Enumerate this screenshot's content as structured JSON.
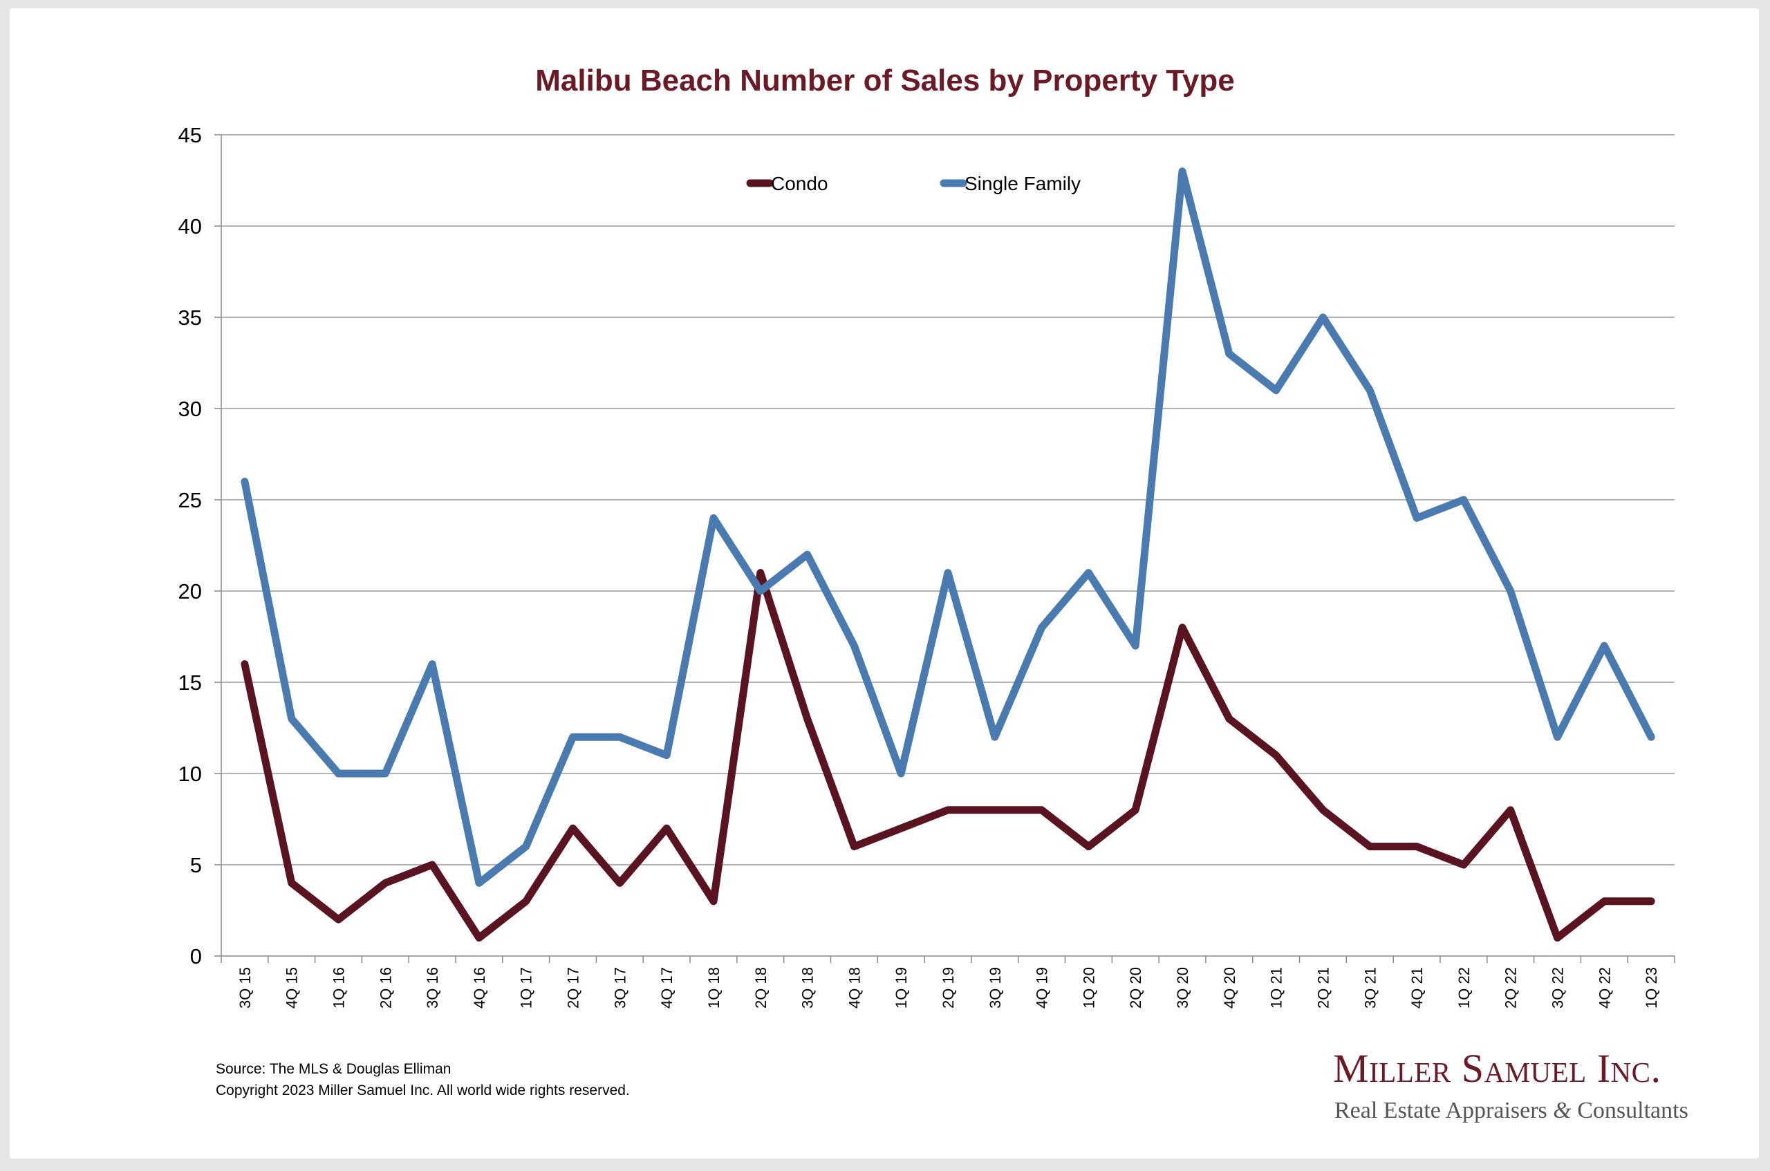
{
  "chart_data": {
    "type": "line",
    "title": "Malibu Beach Number of Sales by Property Type",
    "xlabel": "",
    "ylabel": "",
    "ylim": [
      0,
      45
    ],
    "yticks": [
      0,
      5,
      10,
      15,
      20,
      25,
      30,
      35,
      40,
      45
    ],
    "grid": true,
    "legend_position": "top-center",
    "categories": [
      "3Q 15",
      "4Q 15",
      "1Q 16",
      "2Q 16",
      "3Q 16",
      "4Q 16",
      "1Q 17",
      "2Q 17",
      "3Q 17",
      "4Q 17",
      "1Q 18",
      "2Q 18",
      "3Q 18",
      "4Q 18",
      "1Q 19",
      "2Q 19",
      "3Q 19",
      "4Q 19",
      "1Q 20",
      "2Q 20",
      "3Q 20",
      "4Q 20",
      "1Q 21",
      "2Q 21",
      "3Q 21",
      "4Q 21",
      "1Q 22",
      "2Q 22",
      "3Q 22",
      "4Q 22",
      "1Q 23"
    ],
    "series": [
      {
        "name": "Condo",
        "color": "#5a1320",
        "values": [
          16,
          4,
          2,
          4,
          5,
          1,
          3,
          7,
          4,
          7,
          3,
          21,
          13,
          6,
          7,
          8,
          8,
          8,
          6,
          8,
          18,
          13,
          11,
          8,
          6,
          6,
          5,
          8,
          1,
          3,
          3
        ]
      },
      {
        "name": "Single Family",
        "color": "#4a7bb0",
        "values": [
          26,
          13,
          10,
          10,
          16,
          4,
          6,
          12,
          12,
          11,
          24,
          20,
          22,
          17,
          10,
          21,
          12,
          18,
          21,
          17,
          43,
          33,
          31,
          35,
          31,
          24,
          25,
          20,
          12,
          17,
          12
        ]
      }
    ]
  },
  "footer": {
    "source": "Source: The MLS & Douglas Elliman",
    "copyright": "Copyright 2023 Miller Samuel Inc.  All world wide rights reserved."
  },
  "logo": {
    "name": "Miller Samuel Inc.",
    "tagline_part1": "Real Estate Appraisers",
    "tagline_amp": "&",
    "tagline_part2": "Consultants"
  }
}
